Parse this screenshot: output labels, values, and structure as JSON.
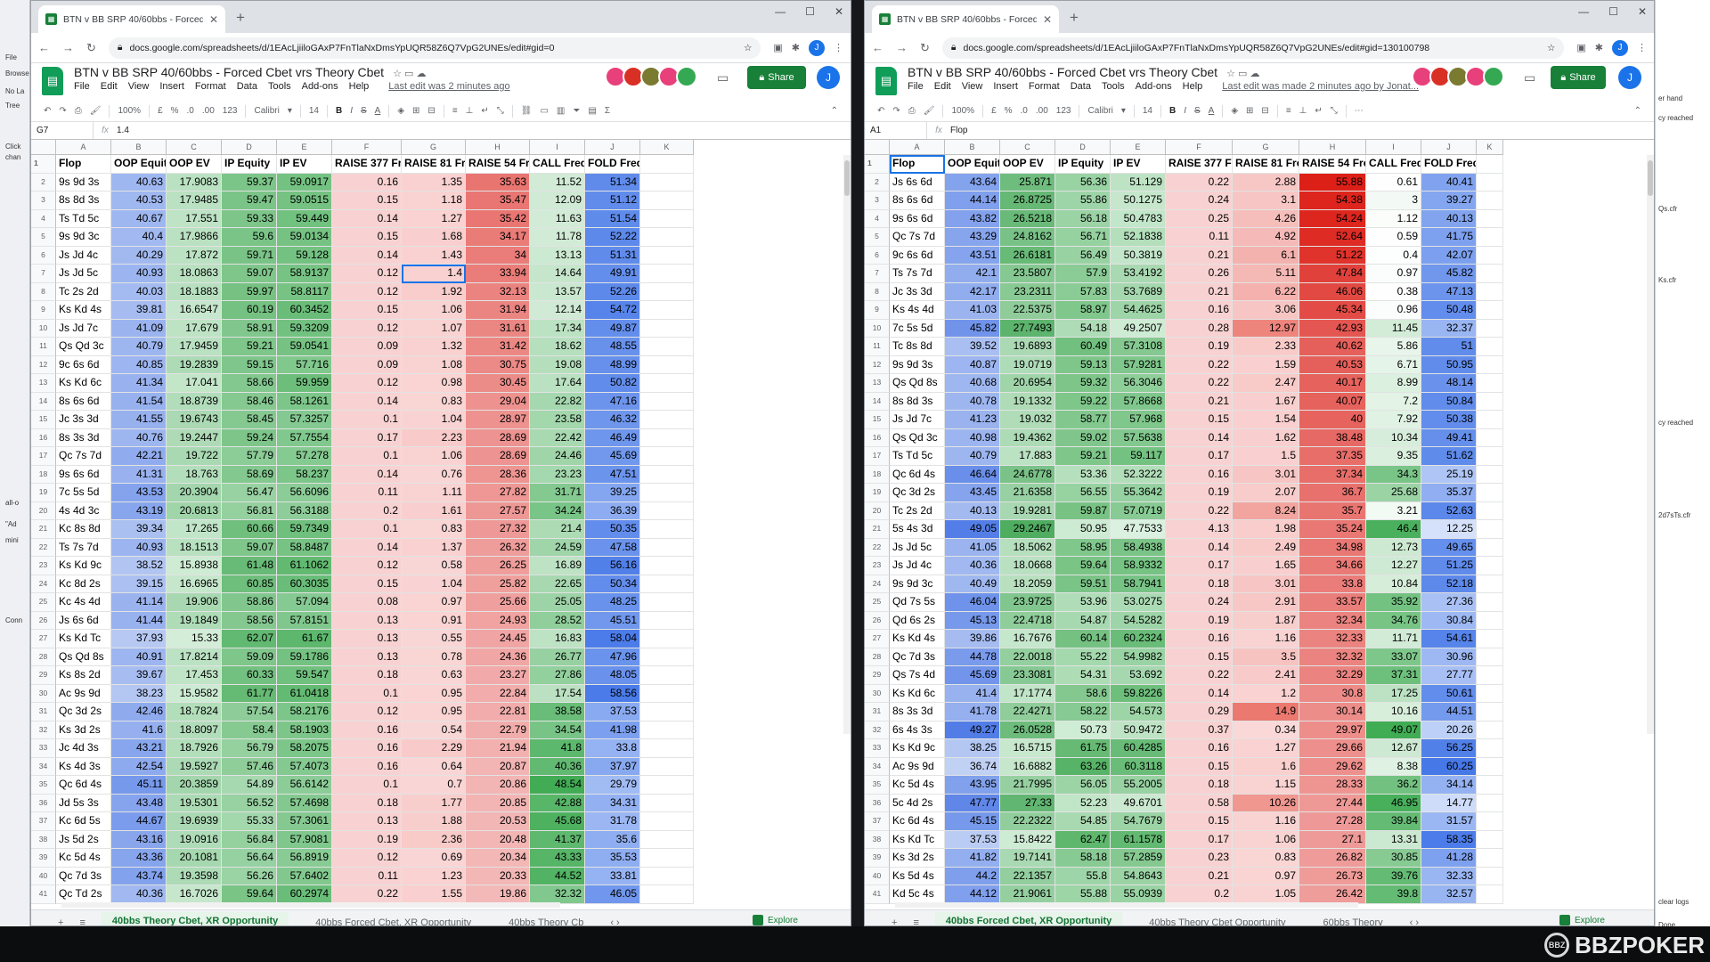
{
  "headers": [
    "Flop",
    "OOP Equity",
    "OOP EV",
    "IP Equity",
    "IP EV",
    "RAISE 377 Freq",
    "RAISE 81 Freq",
    "RAISE 54 Freq",
    "CALL Freq",
    "FOLD Freq"
  ],
  "col_letters": [
    "A",
    "B",
    "C",
    "D",
    "E",
    "F",
    "G",
    "H",
    "I",
    "J",
    "K"
  ],
  "row_numbers": [
    "1",
    "2",
    "3",
    "4",
    "5",
    "6",
    "7",
    "8",
    "9",
    "10",
    "11",
    "12",
    "13",
    "14",
    "15",
    "16",
    "17",
    "18",
    "19",
    "20",
    "21",
    "22",
    "23",
    "24",
    "25",
    "26",
    "27",
    "28",
    "29",
    "30",
    "31",
    "32",
    "33",
    "34",
    "35",
    "36",
    "37",
    "38",
    "39",
    "40",
    "41"
  ],
  "colors": {
    "ext1": "#e8407a",
    "ext2": "#d93025",
    "ext3": "#7a7a30",
    "ext4": "#e8407a",
    "ext5": "#34a853",
    "share": "#188038",
    "sheets": "#0f9d58"
  },
  "left": {
    "tab_title": "BTN v BB SRP 40/60bbs - Forced C",
    "url": "docs.google.com/spreadsheets/d/1EAcLjiiloGAxP7FnTlaNxDmsYpUQR58Z6Q7VpG2UNEs/edit#gid=0",
    "doc_title": "BTN v BB SRP 40/60bbs - Forced Cbet vrs Theory Cbet",
    "menus": [
      "File",
      "Edit",
      "View",
      "Insert",
      "Format",
      "Data",
      "Tools",
      "Add-ons",
      "Help"
    ],
    "last_edit": "Last edit was 2 minutes ago",
    "share": "Share",
    "avatar": "J",
    "zoom": "100%",
    "font": "Calibri",
    "size": "14",
    "cell_ref": "G7",
    "formula": "1.4",
    "sheet_tabs": [
      "40bbs Theory Cbet, XR Opportunity",
      "40bbs Forced Cbet, XR Opportunity",
      "40bbs Theory Cb"
    ],
    "explore": "Explore",
    "rows": [
      [
        "9s 9d 3s",
        "40.63",
        "17.9083",
        "59.37",
        "59.0917",
        "0.16",
        "1.35",
        "35.63",
        "11.52",
        "51.34"
      ],
      [
        "8s 8d 3s",
        "40.53",
        "17.9485",
        "59.47",
        "59.0515",
        "0.15",
        "1.18",
        "35.47",
        "12.09",
        "51.12"
      ],
      [
        "Ts Td 5c",
        "40.67",
        "17.551",
        "59.33",
        "59.449",
        "0.14",
        "1.27",
        "35.42",
        "11.63",
        "51.54"
      ],
      [
        "9s 9d 3c",
        "40.4",
        "17.9866",
        "59.6",
        "59.0134",
        "0.15",
        "1.68",
        "34.17",
        "11.78",
        "52.22"
      ],
      [
        "Js Jd 4c",
        "40.29",
        "17.872",
        "59.71",
        "59.128",
        "0.14",
        "1.43",
        "34",
        "13.13",
        "51.31"
      ],
      [
        "Js Jd 5c",
        "40.93",
        "18.0863",
        "59.07",
        "58.9137",
        "0.12",
        "1.4",
        "33.94",
        "14.64",
        "49.91"
      ],
      [
        "Tc 2s 2d",
        "40.03",
        "18.1883",
        "59.97",
        "58.8117",
        "0.12",
        "1.92",
        "32.13",
        "13.57",
        "52.26"
      ],
      [
        "Ks Kd 4s",
        "39.81",
        "16.6547",
        "60.19",
        "60.3452",
        "0.15",
        "1.06",
        "31.94",
        "12.14",
        "54.72"
      ],
      [
        "Js Jd 7c",
        "41.09",
        "17.679",
        "58.91",
        "59.3209",
        "0.12",
        "1.07",
        "31.61",
        "17.34",
        "49.87"
      ],
      [
        "Qs Qd 3c",
        "40.79",
        "17.9459",
        "59.21",
        "59.0541",
        "0.09",
        "1.32",
        "31.42",
        "18.62",
        "48.55"
      ],
      [
        "9c 6s 6d",
        "40.85",
        "19.2839",
        "59.15",
        "57.716",
        "0.09",
        "1.08",
        "30.75",
        "19.08",
        "48.99"
      ],
      [
        "Ks Kd 6c",
        "41.34",
        "17.041",
        "58.66",
        "59.959",
        "0.12",
        "0.98",
        "30.45",
        "17.64",
        "50.82"
      ],
      [
        "8s 6s 6d",
        "41.54",
        "18.8739",
        "58.46",
        "58.1261",
        "0.14",
        "0.83",
        "29.04",
        "22.82",
        "47.16"
      ],
      [
        "Jc 3s 3d",
        "41.55",
        "19.6743",
        "58.45",
        "57.3257",
        "0.1",
        "1.04",
        "28.97",
        "23.58",
        "46.32"
      ],
      [
        "8s 3s 3d",
        "40.76",
        "19.2447",
        "59.24",
        "57.7554",
        "0.17",
        "2.23",
        "28.69",
        "22.42",
        "46.49"
      ],
      [
        "Qc 7s 7d",
        "42.21",
        "19.722",
        "57.79",
        "57.278",
        "0.1",
        "1.06",
        "28.69",
        "24.46",
        "45.69"
      ],
      [
        "9s 6s 6d",
        "41.31",
        "18.763",
        "58.69",
        "58.237",
        "0.14",
        "0.76",
        "28.36",
        "23.23",
        "47.51"
      ],
      [
        "7c 5s 5d",
        "43.53",
        "20.3904",
        "56.47",
        "56.6096",
        "0.11",
        "1.11",
        "27.82",
        "31.71",
        "39.25"
      ],
      [
        "4s 4d 3c",
        "43.19",
        "20.6813",
        "56.81",
        "56.3188",
        "0.2",
        "1.61",
        "27.57",
        "34.24",
        "36.39"
      ],
      [
        "Kc 8s 8d",
        "39.34",
        "17.265",
        "60.66",
        "59.7349",
        "0.1",
        "0.83",
        "27.32",
        "21.4",
        "50.35"
      ],
      [
        "Ts 7s 7d",
        "40.93",
        "18.1513",
        "59.07",
        "58.8487",
        "0.14",
        "1.37",
        "26.32",
        "24.59",
        "47.58"
      ],
      [
        "Ks Kd 9c",
        "38.52",
        "15.8938",
        "61.48",
        "61.1062",
        "0.12",
        "0.58",
        "26.25",
        "16.89",
        "56.16"
      ],
      [
        "Kc 8d 2s",
        "39.15",
        "16.6965",
        "60.85",
        "60.3035",
        "0.15",
        "1.04",
        "25.82",
        "22.65",
        "50.34"
      ],
      [
        "Kc 4s 4d",
        "41.14",
        "19.906",
        "58.86",
        "57.094",
        "0.08",
        "0.97",
        "25.66",
        "25.05",
        "48.25"
      ],
      [
        "Js 6s 6d",
        "41.44",
        "19.1849",
        "58.56",
        "57.8151",
        "0.13",
        "0.91",
        "24.93",
        "28.52",
        "45.51"
      ],
      [
        "Ks Kd Tc",
        "37.93",
        "15.33",
        "62.07",
        "61.67",
        "0.13",
        "0.55",
        "24.45",
        "16.83",
        "58.04"
      ],
      [
        "Qs Qd 8s",
        "40.91",
        "17.8214",
        "59.09",
        "59.1786",
        "0.13",
        "0.78",
        "24.36",
        "26.77",
        "47.96"
      ],
      [
        "Ks 8s 2d",
        "39.67",
        "17.453",
        "60.33",
        "59.547",
        "0.18",
        "0.63",
        "23.27",
        "27.86",
        "48.05"
      ],
      [
        "Ac 9s 9d",
        "38.23",
        "15.9582",
        "61.77",
        "61.0418",
        "0.1",
        "0.95",
        "22.84",
        "17.54",
        "58.56"
      ],
      [
        "Qc 3d 2s",
        "42.46",
        "18.7824",
        "57.54",
        "58.2176",
        "0.12",
        "0.95",
        "22.81",
        "38.58",
        "37.53"
      ],
      [
        "Ks 3d 2s",
        "41.6",
        "18.8097",
        "58.4",
        "58.1903",
        "0.16",
        "0.54",
        "22.79",
        "34.54",
        "41.98"
      ],
      [
        "Jc 4d 3s",
        "43.21",
        "18.7926",
        "56.79",
        "58.2075",
        "0.16",
        "2.29",
        "21.94",
        "41.8",
        "33.8"
      ],
      [
        "Ks 4d 3s",
        "42.54",
        "19.5927",
        "57.46",
        "57.4073",
        "0.16",
        "0.64",
        "20.87",
        "40.36",
        "37.97"
      ],
      [
        "Qc 6d 4s",
        "45.11",
        "20.3859",
        "54.89",
        "56.6142",
        "0.1",
        "0.7",
        "20.86",
        "48.54",
        "29.79"
      ],
      [
        "Jd 5s 3s",
        "43.48",
        "19.5301",
        "56.52",
        "57.4698",
        "0.18",
        "1.77",
        "20.85",
        "42.88",
        "34.31"
      ],
      [
        "Kc 6d 5s",
        "44.67",
        "19.6939",
        "55.33",
        "57.3061",
        "0.13",
        "1.88",
        "20.53",
        "45.68",
        "31.78"
      ],
      [
        "Js 5d 2s",
        "43.16",
        "19.0916",
        "56.84",
        "57.9081",
        "0.19",
        "2.36",
        "20.48",
        "41.37",
        "35.6"
      ],
      [
        "Kc 5d 4s",
        "43.36",
        "20.1081",
        "56.64",
        "56.8919",
        "0.12",
        "0.69",
        "20.34",
        "43.33",
        "35.53"
      ],
      [
        "Qc 7d 3s",
        "43.74",
        "19.3598",
        "56.26",
        "57.6402",
        "0.11",
        "1.23",
        "20.33",
        "44.52",
        "33.81"
      ],
      [
        "Qc Td 2s",
        "40.36",
        "16.7026",
        "59.64",
        "60.2974",
        "0.22",
        "1.55",
        "19.86",
        "32.32",
        "46.05"
      ]
    ]
  },
  "right": {
    "tab_title": "BTN v BB SRP 40/60bbs - Forced",
    "url": "docs.google.com/spreadsheets/d/1EAcLjiiloGAxP7FnTlaNxDmsYpUQR58Z6Q7VpG2UNEs/edit#gid=130100798",
    "doc_title": "BTN v BB SRP 40/60bbs - Forced Cbet vrs Theory Cbet",
    "menus": [
      "File",
      "Edit",
      "View",
      "Insert",
      "Format",
      "Data",
      "Tools",
      "Add-ons",
      "Help"
    ],
    "last_edit": "Last edit was made 2 minutes ago by Jonat...",
    "share": "Share",
    "avatar": "J",
    "zoom": "100%",
    "font": "Calibri",
    "size": "14",
    "cell_ref": "A1",
    "formula": "Flop",
    "sheet_tabs": [
      "40bbs Forced Cbet, XR Opportunity",
      "40bbs Theory Cbet Opportunity",
      "60bbs Theory"
    ],
    "explore": "Explore",
    "rows": [
      [
        "Js 6s 6d",
        "43.64",
        "25.871",
        "56.36",
        "51.129",
        "0.22",
        "2.88",
        "55.88",
        "0.61",
        "40.41"
      ],
      [
        "8s 6s 6d",
        "44.14",
        "26.8725",
        "55.86",
        "50.1275",
        "0.24",
        "3.1",
        "54.38",
        "3",
        "39.27"
      ],
      [
        "9s 6s 6d",
        "43.82",
        "26.5218",
        "56.18",
        "50.4783",
        "0.25",
        "4.26",
        "54.24",
        "1.12",
        "40.13"
      ],
      [
        "Qc 7s 7d",
        "43.29",
        "24.8162",
        "56.71",
        "52.1838",
        "0.11",
        "4.92",
        "52.64",
        "0.59",
        "41.75"
      ],
      [
        "9c 6s 6d",
        "43.51",
        "26.6181",
        "56.49",
        "50.3819",
        "0.21",
        "6.1",
        "51.22",
        "0.4",
        "42.07"
      ],
      [
        "Ts 7s 7d",
        "42.1",
        "23.5807",
        "57.9",
        "53.4192",
        "0.26",
        "5.11",
        "47.84",
        "0.97",
        "45.82"
      ],
      [
        "Jc 3s 3d",
        "42.17",
        "23.2311",
        "57.83",
        "53.7689",
        "0.21",
        "6.22",
        "46.06",
        "0.38",
        "47.13"
      ],
      [
        "Ks 4s 4d",
        "41.03",
        "22.5375",
        "58.97",
        "54.4625",
        "0.16",
        "3.06",
        "45.34",
        "0.96",
        "50.48"
      ],
      [
        "7c 5s 5d",
        "45.82",
        "27.7493",
        "54.18",
        "49.2507",
        "0.28",
        "12.97",
        "42.93",
        "11.45",
        "32.37"
      ],
      [
        "Tc 8s 8d",
        "39.52",
        "19.6893",
        "60.49",
        "57.3108",
        "0.19",
        "2.33",
        "40.62",
        "5.86",
        "51"
      ],
      [
        "9s 9d 3s",
        "40.87",
        "19.0719",
        "59.13",
        "57.9281",
        "0.22",
        "1.59",
        "40.53",
        "6.71",
        "50.95"
      ],
      [
        "Qs Qd 8s",
        "40.68",
        "20.6954",
        "59.32",
        "56.3046",
        "0.22",
        "2.47",
        "40.17",
        "8.99",
        "48.14"
      ],
      [
        "8s 8d 3s",
        "40.78",
        "19.1332",
        "59.22",
        "57.8668",
        "0.21",
        "1.67",
        "40.07",
        "7.2",
        "50.84"
      ],
      [
        "Js Jd 7c",
        "41.23",
        "19.032",
        "58.77",
        "57.968",
        "0.15",
        "1.54",
        "40",
        "7.92",
        "50.38"
      ],
      [
        "Qs Qd 3c",
        "40.98",
        "19.4362",
        "59.02",
        "57.5638",
        "0.14",
        "1.62",
        "38.48",
        "10.34",
        "49.41"
      ],
      [
        "Ts Td 5c",
        "40.79",
        "17.883",
        "59.21",
        "59.117",
        "0.17",
        "1.5",
        "37.35",
        "9.35",
        "51.62"
      ],
      [
        "Qc 6d 4s",
        "46.64",
        "24.6778",
        "53.36",
        "52.3222",
        "0.16",
        "3.01",
        "37.34",
        "34.3",
        "25.19"
      ],
      [
        "Qc 3d 2s",
        "43.45",
        "21.6358",
        "56.55",
        "55.3642",
        "0.19",
        "2.07",
        "36.7",
        "25.68",
        "35.37"
      ],
      [
        "Tc 2s 2d",
        "40.13",
        "19.9281",
        "59.87",
        "57.0719",
        "0.22",
        "8.24",
        "35.7",
        "3.21",
        "52.63"
      ],
      [
        "5s 4s 3d",
        "49.05",
        "29.2467",
        "50.95",
        "47.7533",
        "4.13",
        "1.98",
        "35.24",
        "46.4",
        "12.25"
      ],
      [
        "Js Jd 5c",
        "41.05",
        "18.5062",
        "58.95",
        "58.4938",
        "0.14",
        "2.49",
        "34.98",
        "12.73",
        "49.65"
      ],
      [
        "Js Jd 4c",
        "40.36",
        "18.0668",
        "59.64",
        "58.9332",
        "0.17",
        "1.65",
        "34.66",
        "12.27",
        "51.25"
      ],
      [
        "9s 9d 3c",
        "40.49",
        "18.2059",
        "59.51",
        "58.7941",
        "0.18",
        "3.01",
        "33.8",
        "10.84",
        "52.18"
      ],
      [
        "Qd 7s 5s",
        "46.04",
        "23.9725",
        "53.96",
        "53.0275",
        "0.24",
        "2.91",
        "33.57",
        "35.92",
        "27.36"
      ],
      [
        "Qd 6s 2s",
        "45.13",
        "22.4718",
        "54.87",
        "54.5282",
        "0.19",
        "1.87",
        "32.34",
        "34.76",
        "30.84"
      ],
      [
        "Ks Kd 4s",
        "39.86",
        "16.7676",
        "60.14",
        "60.2324",
        "0.16",
        "1.16",
        "32.33",
        "11.71",
        "54.61"
      ],
      [
        "Qc 7d 3s",
        "44.78",
        "22.0018",
        "55.22",
        "54.9982",
        "0.15",
        "3.5",
        "32.32",
        "33.07",
        "30.96"
      ],
      [
        "Qs 7s 4d",
        "45.69",
        "23.3081",
        "54.31",
        "53.692",
        "0.22",
        "2.41",
        "32.29",
        "37.31",
        "27.77"
      ],
      [
        "Ks Kd 6c",
        "41.4",
        "17.1774",
        "58.6",
        "59.8226",
        "0.14",
        "1.2",
        "30.8",
        "17.25",
        "50.61"
      ],
      [
        "8s 3s 3d",
        "41.78",
        "22.4271",
        "58.22",
        "54.573",
        "0.29",
        "14.9",
        "30.14",
        "10.16",
        "44.51"
      ],
      [
        "6s 4s 3s",
        "49.27",
        "26.0528",
        "50.73",
        "50.9472",
        "0.37",
        "0.34",
        "29.97",
        "49.07",
        "20.26"
      ],
      [
        "Ks Kd 9c",
        "38.25",
        "16.5715",
        "61.75",
        "60.4285",
        "0.16",
        "1.27",
        "29.66",
        "12.67",
        "56.25"
      ],
      [
        "Ac 9s 9d",
        "36.74",
        "16.6882",
        "63.26",
        "60.3118",
        "0.15",
        "1.6",
        "29.62",
        "8.38",
        "60.25"
      ],
      [
        "Kc 5d 4s",
        "43.95",
        "21.7995",
        "56.05",
        "55.2005",
        "0.18",
        "1.15",
        "28.33",
        "36.2",
        "34.14"
      ],
      [
        "5c 4d 2s",
        "47.77",
        "27.33",
        "52.23",
        "49.6701",
        "0.58",
        "10.26",
        "27.44",
        "46.95",
        "14.77"
      ],
      [
        "Kc 6d 4s",
        "45.15",
        "22.2322",
        "54.85",
        "54.7679",
        "0.15",
        "1.16",
        "27.28",
        "39.84",
        "31.57"
      ],
      [
        "Ks Kd Tc",
        "37.53",
        "15.8422",
        "62.47",
        "61.1578",
        "0.17",
        "1.06",
        "27.1",
        "13.31",
        "58.35"
      ],
      [
        "Ks 3d 2s",
        "41.82",
        "19.7141",
        "58.18",
        "57.2859",
        "0.23",
        "0.83",
        "26.82",
        "30.85",
        "41.28"
      ],
      [
        "Ks 5d 4s",
        "44.2",
        "22.1357",
        "55.8",
        "54.8643",
        "0.21",
        "0.97",
        "26.73",
        "39.76",
        "32.33"
      ],
      [
        "Kd 5c 4s",
        "44.12",
        "21.9061",
        "55.88",
        "55.0939",
        "0.2",
        "1.05",
        "26.42",
        "39.8",
        "32.57"
      ]
    ]
  },
  "bg": {
    "left_labels": [
      "File",
      "Browse",
      "No La",
      "Tree",
      "Click",
      "chan",
      "all-o",
      "\"Ad",
      "mini",
      "Conn"
    ],
    "right_labels": [
      "er hand",
      "cy reached",
      "Qs.cfr",
      "Ks.cfr",
      "cy reached",
      "2d7sTs.cfr",
      "clear logs",
      "Done"
    ]
  },
  "brand": "BBZPOKER",
  "brand_chip": "BBZ"
}
